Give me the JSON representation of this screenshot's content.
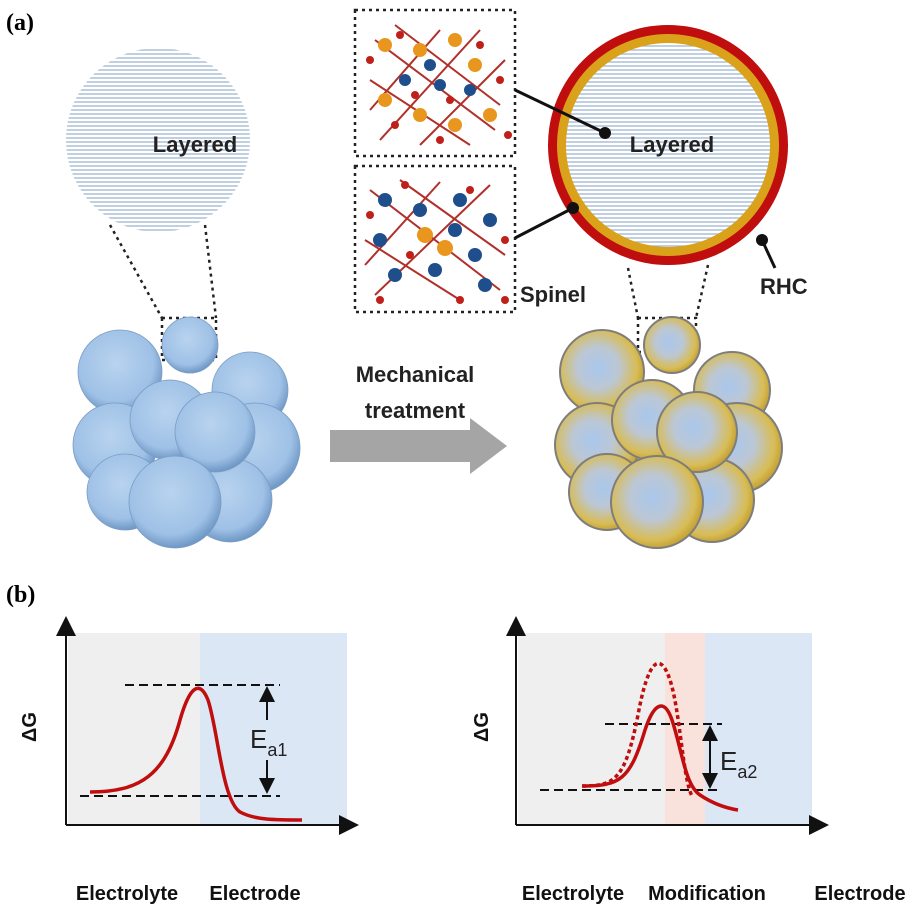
{
  "panel_a": {
    "label": "(a)",
    "left_particle": {
      "label": "Layered"
    },
    "right_particle": {
      "label": "Layered",
      "shell_labels": [
        "Spinel",
        "RHC"
      ]
    },
    "arrow": {
      "label": [
        "Mechanical",
        "treatment"
      ]
    }
  },
  "panel_b": {
    "label": "(b)",
    "left_plot": {
      "y_axis": "ΔG",
      "barrier": {
        "symbol": "E",
        "subscript": "a1"
      },
      "regions": [
        "Electrolyte",
        "Electrode"
      ]
    },
    "right_plot": {
      "y_axis": "ΔG",
      "barrier": {
        "symbol": "E",
        "subscript": "a2"
      },
      "regions": [
        "Electrolyte",
        "Modification",
        "Electrode"
      ]
    }
  }
}
